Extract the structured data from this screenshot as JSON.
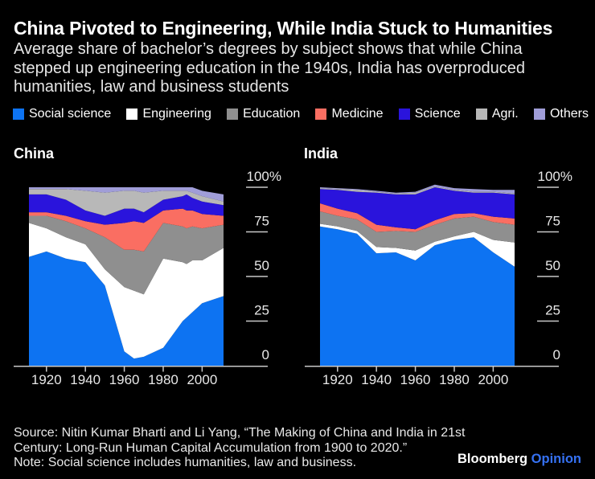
{
  "header": {
    "title": "China Pivoted to Engineering, While India Stuck to Humanities",
    "subtitle_lines": [
      "Average share of bachelor’s degrees by subject shows that while China",
      "stepped up engineering education in the 1940s, India has overproduced",
      "humanities, law and business students"
    ]
  },
  "legend": [
    {
      "label": "Social science",
      "color": "#0d73f2"
    },
    {
      "label": "Engineering",
      "color": "#ffffff"
    },
    {
      "label": "Education",
      "color": "#8f8f8f"
    },
    {
      "label": "Medicine",
      "color": "#fa6e62"
    },
    {
      "label": "Science",
      "color": "#2a14dc"
    },
    {
      "label": "Agri.",
      "color": "#b8b8b8"
    },
    {
      "label": "Others",
      "color": "#a09dd8"
    }
  ],
  "axis_style": {
    "line_color": "#c8c8c8",
    "text_color": "#e8e8e8"
  },
  "chart_data": [
    {
      "type": "area",
      "title": "China",
      "stacked": true,
      "unit": "%",
      "x_ticks": [
        1920,
        1940,
        1960,
        1980,
        2000
      ],
      "y_ticks": [
        0,
        25,
        50,
        75,
        100
      ],
      "y_tick_labels": [
        "0",
        "25",
        "50",
        "75",
        "100%"
      ],
      "ylim": [
        0,
        100
      ],
      "years": [
        1911,
        1920,
        1930,
        1940,
        1950,
        1960,
        1965,
        1970,
        1980,
        1990,
        1992,
        1995,
        2000,
        2011
      ],
      "series": [
        {
          "name": "Social science",
          "color": "#0d73f2",
          "values": [
            61,
            64,
            60,
            58,
            45,
            8,
            4,
            5,
            10,
            25,
            27,
            30,
            35,
            39
          ]
        },
        {
          "name": "Engineering",
          "color": "#ffffff",
          "values": [
            19,
            13,
            12,
            10,
            9,
            36,
            38,
            35,
            50,
            33,
            30,
            29,
            24,
            27
          ]
        },
        {
          "name": "Education",
          "color": "#8f8f8f",
          "values": [
            4,
            7,
            9,
            9,
            18,
            21,
            23,
            24,
            20,
            20,
            20,
            19,
            18,
            13
          ]
        },
        {
          "name": "Medicine",
          "color": "#fa6e62",
          "values": [
            2,
            2,
            3,
            4,
            7,
            15,
            16,
            16,
            7,
            10,
            10,
            9,
            8,
            5
          ]
        },
        {
          "name": "Science",
          "color": "#2a14dc",
          "values": [
            10,
            10,
            9,
            6,
            5,
            8,
            7,
            6,
            6,
            7,
            9,
            7,
            7,
            6
          ]
        },
        {
          "name": "Agri.",
          "color": "#b8b8b8",
          "values": [
            3,
            3,
            6,
            11,
            13,
            10,
            10,
            11,
            5,
            3,
            2,
            3,
            3,
            2
          ]
        },
        {
          "name": "Others",
          "color": "#a09dd8",
          "values": [
            1,
            1,
            1,
            2,
            3,
            2,
            2,
            3,
            2,
            2,
            2,
            3,
            3,
            4
          ]
        }
      ]
    },
    {
      "type": "area",
      "title": "India",
      "stacked": true,
      "unit": "%",
      "x_ticks": [
        1920,
        1940,
        1960,
        1980,
        2000
      ],
      "y_ticks": [
        0,
        25,
        50,
        75,
        100
      ],
      "y_tick_labels": [
        "0",
        "25",
        "50",
        "75",
        "100%"
      ],
      "ylim": [
        0,
        100
      ],
      "years": [
        1911,
        1920,
        1930,
        1940,
        1950,
        1960,
        1970,
        1980,
        1990,
        2000,
        2011
      ],
      "series": [
        {
          "name": "Social science",
          "color": "#0d73f2",
          "values": [
            78,
            76.5,
            74,
            63,
            63.5,
            59,
            67.5,
            70.5,
            72,
            63.5,
            55.5
          ]
        },
        {
          "name": "Engineering",
          "color": "#ffffff",
          "values": [
            1.5,
            1.5,
            1.5,
            3.5,
            2.5,
            5.5,
            2,
            2,
            3,
            7,
            13.5
          ]
        },
        {
          "name": "Education",
          "color": "#8f8f8f",
          "values": [
            7,
            6,
            6.5,
            8.5,
            9.5,
            10.5,
            9.5,
            10,
            8.5,
            10,
            10
          ]
        },
        {
          "name": "Medicine",
          "color": "#fa6e62",
          "values": [
            4.5,
            4,
            3.5,
            4,
            2,
            1.5,
            2.5,
            2.5,
            2,
            3,
            3.5
          ]
        },
        {
          "name": "Science",
          "color": "#2a14dc",
          "values": [
            8,
            10.5,
            12,
            18,
            18.5,
            19.5,
            18.5,
            13,
            11.5,
            13.5,
            13.5
          ]
        },
        {
          "name": "Agri.",
          "color": "#b8b8b8",
          "values": [
            0.5,
            0.5,
            1,
            0.5,
            0.5,
            1,
            0.5,
            0.5,
            0.5,
            0.5,
            0.5
          ]
        },
        {
          "name": "Others",
          "color": "#a09dd8",
          "values": [
            0.5,
            0.5,
            0.5,
            0.5,
            0.5,
            0.5,
            1,
            1,
            1.5,
            1,
            2
          ]
        }
      ]
    }
  ],
  "footer": {
    "lines": [
      "Source: Nitin Kumar Bharti and Li Yang, “The Making of China and India in 21st",
      "Century: Long-Run Human Capital Accumulation from 1900 to 2020.”",
      "Note: Social science includes humanities, law and business."
    ]
  },
  "brand": {
    "name": "Bloomberg",
    "product": "Opinion",
    "product_color": "#3571f3"
  }
}
